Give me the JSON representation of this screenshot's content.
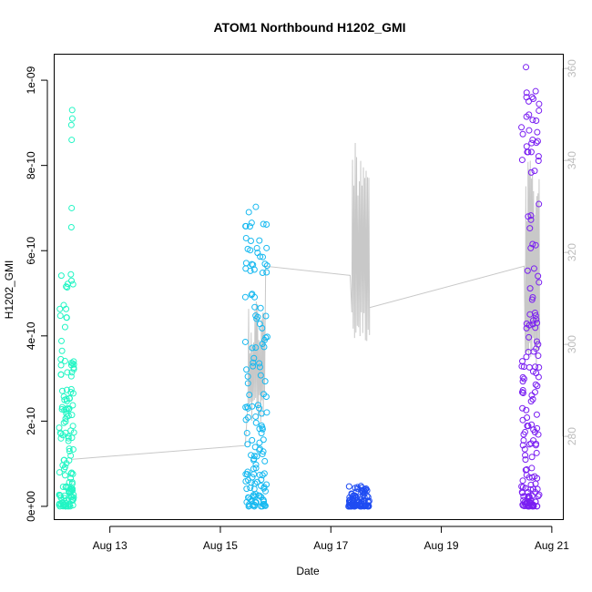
{
  "chart_data": {
    "type": "scatter",
    "title": "ATOM1 Northbound H1202_GMI",
    "xlabel": "Date",
    "ylabel": "H1202_GMI",
    "x_ticks": [
      "Aug 13",
      "Aug 15",
      "Aug 17",
      "Aug 19",
      "Aug 21"
    ],
    "x_tick_days": [
      13,
      15,
      17,
      19,
      21
    ],
    "xlim_days": [
      12.0,
      21.2
    ],
    "y_ticks": [
      "0e+00",
      "2e-10",
      "4e-10",
      "6e-10",
      "8e-10",
      "1e-09"
    ],
    "y_tick_values": [
      0,
      2e-10,
      4e-10,
      6e-10,
      8e-10,
      1e-09
    ],
    "ylim": [
      -3e-11,
      1.06e-09
    ],
    "y2_ticks": [
      "280",
      "300",
      "320",
      "340",
      "360"
    ],
    "y2_tick_values": [
      280,
      300,
      320,
      340,
      360
    ],
    "y2lim": [
      262.0,
      363.0
    ],
    "grid": false,
    "series": [
      {
        "kind": "points",
        "color": "#22f5c4",
        "clusters": [
          {
            "x_day_range": [
              12.08,
              12.35
            ],
            "y_range": [
              0,
              5.5e-10
            ],
            "count": 140
          },
          {
            "x_day_range": [
              12.3,
              12.33
            ],
            "y_values": [
              9.3e-10,
              9.1e-10,
              8.95e-10,
              8.6e-10,
              7e-10,
              6.55e-10
            ]
          }
        ]
      },
      {
        "kind": "points",
        "color": "#17b9f0",
        "clusters": [
          {
            "x_day_range": [
              15.45,
              15.85
            ],
            "y_range": [
              0,
              7.2e-10
            ],
            "count": 150
          }
        ]
      },
      {
        "kind": "points",
        "color": "#1f4cf2",
        "clusters": [
          {
            "x_day_range": [
              17.32,
              17.72
            ],
            "y_range": [
              0,
              5e-11
            ],
            "count": 90
          }
        ]
      },
      {
        "kind": "points",
        "color": "#7a1ff2",
        "clusters": [
          {
            "x_day_range": [
              20.45,
              20.78
            ],
            "y_range": [
              0,
              1.04e-09
            ],
            "count": 170
          }
        ]
      },
      {
        "kind": "line",
        "axis": "right",
        "color": "#c8c8c8",
        "segments": [
          {
            "x": 12.3,
            "y": 275
          },
          {
            "x": 15.45,
            "y": 278
          },
          {
            "x": 15.5,
            "y": 282,
            "oscillate_to": 312,
            "until": 15.8
          },
          {
            "x": 15.82,
            "y": 317
          },
          {
            "x": 17.35,
            "y": 315
          },
          {
            "x": 17.38,
            "y": 300,
            "oscillate_to": 346,
            "until": 17.7
          },
          {
            "x": 17.7,
            "y": 308
          },
          {
            "x": 20.5,
            "y": 317
          },
          {
            "x": 20.52,
            "y": 295,
            "oscillate_to": 340,
            "until": 20.78
          }
        ]
      }
    ]
  }
}
